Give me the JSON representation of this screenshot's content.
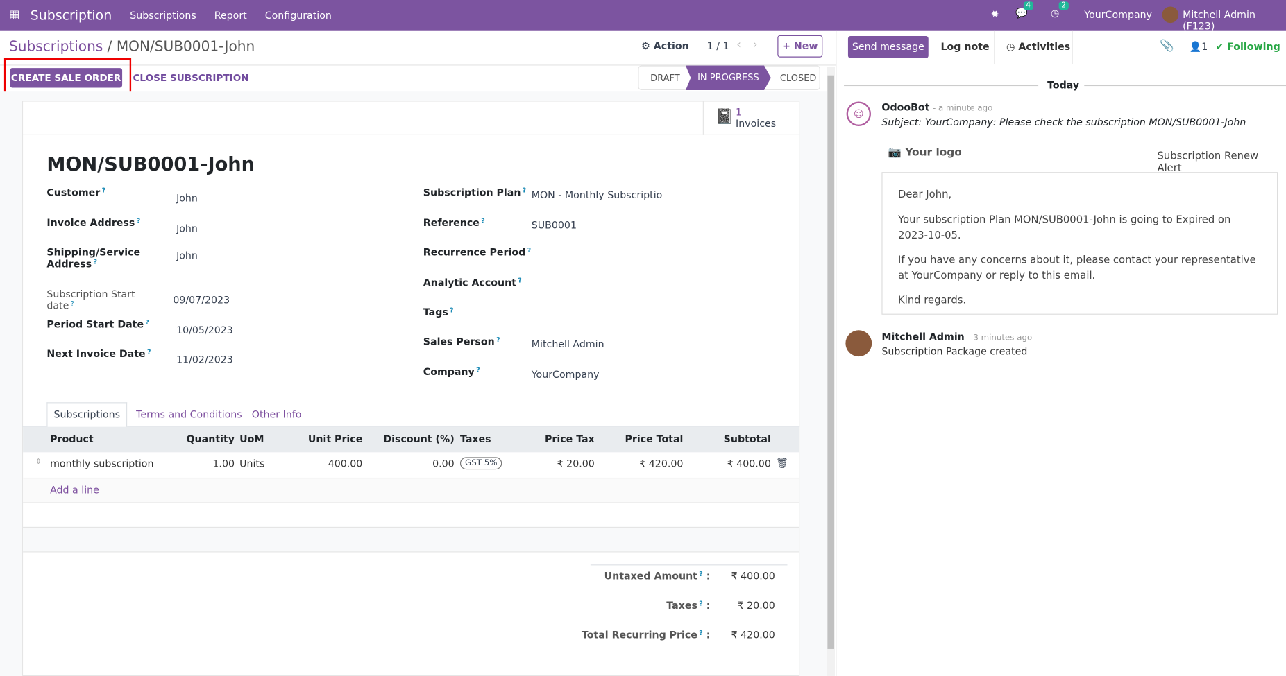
{
  "nav": {
    "app": "Subscription",
    "menus": [
      "Subscriptions",
      "Report",
      "Configuration"
    ],
    "messages_count": "4",
    "activities_count": "2",
    "company": "YourCompany",
    "user": "Mitchell Admin (F123)"
  },
  "breadcrumb": {
    "parent": "Subscriptions",
    "current": "MON/SUB0001-John"
  },
  "controls": {
    "action": "Action",
    "pager": "1 / 1",
    "new": "New"
  },
  "buttons": {
    "create_sale_order": "CREATE SALE ORDER",
    "close_subscription": "CLOSE SUBSCRIPTION"
  },
  "stages": [
    "DRAFT",
    "IN PROGRESS",
    "CLOSED"
  ],
  "active_stage": "IN PROGRESS",
  "smart_button": {
    "count": "1",
    "label": "Invoices"
  },
  "record": {
    "title": "MON/SUB0001-John",
    "left": [
      {
        "label": "Customer",
        "value": "John"
      },
      {
        "label": "Invoice Address",
        "value": "John"
      },
      {
        "label": "Shipping/Service Address",
        "value": "John"
      },
      {
        "label": "Subscription Start date",
        "value": "09/07/2023"
      },
      {
        "label": "Period Start Date",
        "value": "10/05/2023"
      },
      {
        "label": "Next Invoice Date",
        "value": "11/02/2023"
      }
    ],
    "right": [
      {
        "label": "Subscription Plan",
        "value": "MON - Monthly Subscriptio"
      },
      {
        "label": "Reference",
        "value": "SUB0001"
      },
      {
        "label": "Recurrence Period",
        "value": ""
      },
      {
        "label": "Analytic Account",
        "value": ""
      },
      {
        "label": "Tags",
        "value": ""
      },
      {
        "label": "Sales Person",
        "value": "Mitchell Admin"
      },
      {
        "label": "Company",
        "value": "YourCompany"
      }
    ]
  },
  "tabs": [
    "Subscriptions",
    "Terms and Conditions",
    "Other Info"
  ],
  "table": {
    "headers": [
      "Product",
      "Quantity",
      "UoM",
      "Unit Price",
      "Discount (%)",
      "Taxes",
      "Price Tax",
      "Price Total",
      "Subtotal"
    ],
    "rows": [
      [
        "monthly subscription",
        "1.00",
        "Units",
        "400.00",
        "0.00",
        "GST 5%",
        "₹ 20.00",
        "₹ 420.00",
        "₹ 400.00"
      ]
    ],
    "add_line": "Add a line"
  },
  "totals": [
    {
      "label": "Untaxed Amount",
      "value": "₹ 400.00"
    },
    {
      "label": "Taxes",
      "value": "₹ 20.00"
    },
    {
      "label": "Total Recurring Price",
      "value": "₹ 420.00"
    }
  ],
  "chatter": {
    "send_message": "Send message",
    "log_note": "Log note",
    "activities": "Activities",
    "followers": "1",
    "following": "Following",
    "today": "Today",
    "messages": [
      {
        "author": "OdooBot",
        "time": "- a minute ago",
        "subject": "Subject: YourCompany: Please check the subscription MON/SUB0001-John",
        "logo": "Your logo",
        "alert": "Subscription Renew Alert",
        "body": [
          "Dear John,",
          "Your subscription Plan MON/SUB0001-John is going to Expired on 2023-10-05.",
          "If you have any concerns about it, please contact your representative at YourCompany or reply to this email.",
          "Kind regards."
        ]
      },
      {
        "author": "Mitchell Admin",
        "time": "- 3 minutes ago",
        "text": "Subscription Package created"
      }
    ]
  }
}
